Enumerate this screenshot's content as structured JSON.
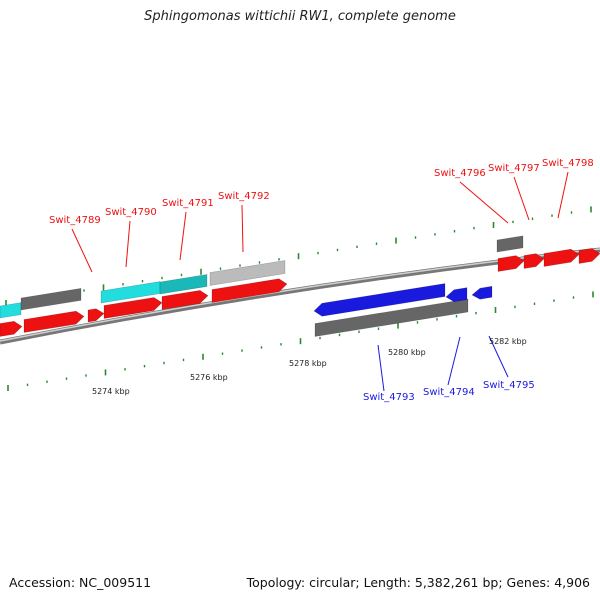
{
  "title": "Sphingomonas wittichii RW1, complete genome",
  "footer": {
    "accession": "Accession: NC_009511",
    "stats": "Topology: circular; Length: 5,382,261 bp; Genes: 4,906"
  },
  "colors": {
    "forward": "#ee1111",
    "reverse": "#1a1adf",
    "cds": "#666666",
    "light": "#bbbbbb",
    "cyan": "#22dddd",
    "teal": "#1ab8b8",
    "tick": "#2a8a2a",
    "backbone": "#8a8a8a"
  },
  "tick_labels": [
    "5274 kbp",
    "5276 kbp",
    "5278 kbp",
    "5280 kbp",
    "5282 kbp"
  ],
  "forward_genes": [
    "Swit_4789",
    "Swit_4790",
    "Swit_4791",
    "Swit_4792",
    "Swit_4796",
    "Swit_4797",
    "Swit_4798"
  ],
  "reverse_genes": [
    "Swit_4793",
    "Swit_4794",
    "Swit_4795"
  ]
}
